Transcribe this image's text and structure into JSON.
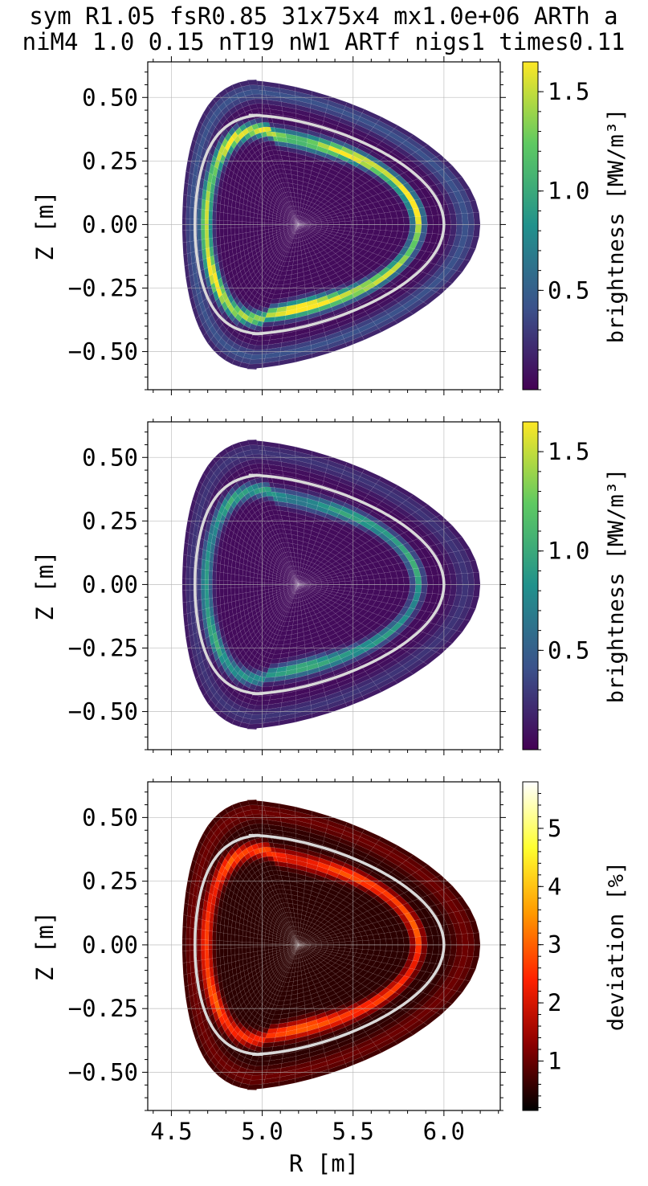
{
  "title_lines": [
    "sym R1.05 fsR0.85 31x75x4 mx1.0e+06 ARTh a",
    "niM4 1.0 0.15 nT19 nW1 ARTf nigs1 times0.11"
  ],
  "chart_data": [
    {
      "type": "heatmap",
      "xlim": [
        4.37,
        6.31
      ],
      "ylim": [
        -0.65,
        0.64
      ],
      "xticks": [
        4.5,
        5.0,
        5.5,
        6.0
      ],
      "xtick_labels": [
        "",
        "",
        "",
        ""
      ],
      "yticks": [
        0.5,
        0.25,
        0.0,
        -0.25,
        -0.5
      ],
      "ytick_labels": [
        "0.50",
        "0.25",
        "0.00",
        "−0.25",
        "−0.50"
      ],
      "xlabel": "",
      "ylabel": "Z [m]",
      "grid": true,
      "colorbar": {
        "label": "brightness [MW/m³]",
        "range": [
          0.0,
          1.65
        ],
        "ticks": [
          1.5,
          1.0,
          0.5
        ],
        "tick_labels": [
          "1.5",
          "1.0",
          "0.5"
        ],
        "colormap": "viridis",
        "colors": [
          "#440154",
          "#3b528b",
          "#21918c",
          "#5ec962",
          "#fde725"
        ]
      },
      "plasma": {
        "R0": 5.2,
        "Z0": 0.0,
        "a_outer": 1.0,
        "a_inner": 0.64,
        "kappa": 0.57,
        "delta": 0.35
      },
      "separatrix": {
        "a_outer": 0.8,
        "a_inner": 0.57,
        "kappa": 0.43,
        "delta": 0.35
      },
      "radiation_ring": {
        "a_outer": 0.66,
        "a_inner": 0.51,
        "kappa": 0.35,
        "peak": 1.65
      },
      "background_value": 0.05,
      "separatrix_color": "#d9d9d9"
    },
    {
      "type": "heatmap",
      "xlim": [
        4.37,
        6.31
      ],
      "ylim": [
        -0.65,
        0.64
      ],
      "xticks": [
        4.5,
        5.0,
        5.5,
        6.0
      ],
      "xtick_labels": [
        "",
        "",
        "",
        ""
      ],
      "yticks": [
        0.5,
        0.25,
        0.0,
        -0.25,
        -0.5
      ],
      "ytick_labels": [
        "0.50",
        "0.25",
        "0.00",
        "−0.25",
        "−0.50"
      ],
      "xlabel": "",
      "ylabel": "Z [m]",
      "grid": true,
      "colorbar": {
        "label": "brightness [MW/m³]",
        "range": [
          0.0,
          1.65
        ],
        "ticks": [
          1.5,
          1.0,
          0.5
        ],
        "tick_labels": [
          "1.5",
          "1.0",
          "0.5"
        ],
        "colormap": "viridis",
        "colors": [
          "#440154",
          "#3b528b",
          "#21918c",
          "#5ec962",
          "#fde725"
        ]
      },
      "plasma": {
        "R0": 5.2,
        "Z0": 0.0,
        "a_outer": 1.0,
        "a_inner": 0.64,
        "kappa": 0.57,
        "delta": 0.35
      },
      "separatrix": {
        "a_outer": 0.8,
        "a_inner": 0.57,
        "kappa": 0.43,
        "delta": 0.35
      },
      "radiation_ring": {
        "a_outer": 0.66,
        "a_inner": 0.51,
        "kappa": 0.35,
        "peak": 0.95
      },
      "background_value": 0.05,
      "separatrix_color": "#d9d9d9"
    },
    {
      "type": "heatmap",
      "xlim": [
        4.37,
        6.31
      ],
      "ylim": [
        -0.65,
        0.64
      ],
      "xticks": [
        4.5,
        5.0,
        5.5,
        6.0
      ],
      "xtick_labels": [
        "4.5",
        "5.0",
        "5.5",
        "6.0"
      ],
      "yticks": [
        0.5,
        0.25,
        0.0,
        -0.25,
        -0.5
      ],
      "ytick_labels": [
        "0.50",
        "0.25",
        "0.00",
        "−0.25",
        "−0.50"
      ],
      "xlabel": "R [m]",
      "ylabel": "Z [m]",
      "grid": true,
      "colorbar": {
        "label": "deviation [%]",
        "range": [
          0.15,
          5.8
        ],
        "ticks": [
          5,
          4,
          3,
          2,
          1
        ],
        "tick_labels": [
          "5",
          "4",
          "3",
          "2",
          "1"
        ],
        "colormap": "hot",
        "colors": [
          "#000000",
          "#8b0000",
          "#ff2200",
          "#ff9900",
          "#ffff30",
          "#ffffff"
        ]
      },
      "plasma": {
        "R0": 5.2,
        "Z0": 0.0,
        "a_outer": 1.0,
        "a_inner": 0.64,
        "kappa": 0.57,
        "delta": 0.35
      },
      "separatrix": {
        "a_outer": 0.8,
        "a_inner": 0.57,
        "kappa": 0.43,
        "delta": 0.35
      },
      "radiation_ring": {
        "a_outer": 0.66,
        "a_inner": 0.51,
        "kappa": 0.35,
        "peak": 2.4
      },
      "background_value": 0.5,
      "separatrix_color": "#d9d9d9"
    }
  ]
}
